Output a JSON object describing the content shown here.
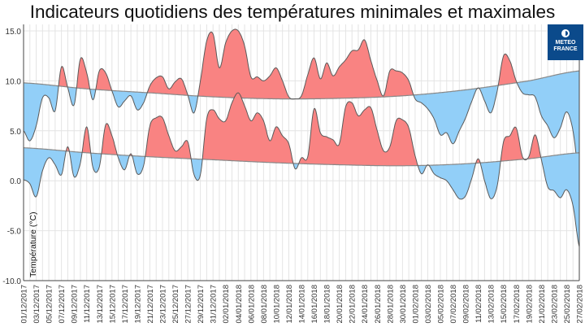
{
  "title": "Indicateurs quotidiens des températures minimales et maximales",
  "logo": {
    "text": "METEO FRANCE",
    "color": "#0b4a8b"
  },
  "chart_data": {
    "type": "area",
    "ylabel": "Température (°C)",
    "xlabel": "",
    "ylim": [
      -10,
      15
    ],
    "yticks": [
      "15.0",
      "10.0",
      "5.0",
      "0.0",
      "-5.0",
      "-10.0"
    ],
    "ytick_values": [
      15,
      10,
      5,
      0,
      -5,
      -10
    ],
    "grid": true,
    "colors": {
      "above_normal": "#f98382",
      "below_normal": "#92cff8",
      "line": "#5a5a5a"
    },
    "x_ticks": [
      "01/12/2017",
      "03/12/2017",
      "05/12/2017",
      "07/12/2017",
      "09/12/2017",
      "11/12/2017",
      "13/12/2017",
      "15/12/2017",
      "17/12/2017",
      "19/12/2017",
      "21/12/2017",
      "23/12/2017",
      "25/12/2017",
      "27/12/2017",
      "29/12/2017",
      "31/12/2017",
      "02/01/2018",
      "04/01/2018",
      "06/01/2018",
      "08/01/2018",
      "10/01/2018",
      "12/01/2018",
      "14/01/2018",
      "16/01/2018",
      "18/01/2018",
      "20/01/2018",
      "22/01/2018",
      "24/01/2018",
      "26/01/2018",
      "28/01/2018",
      "30/01/2018",
      "01/02/2018",
      "03/02/2018",
      "05/02/2018",
      "07/02/2018",
      "09/02/2018",
      "11/02/2018",
      "13/02/2018",
      "15/02/2018",
      "17/02/2018",
      "19/02/2018",
      "21/02/2018",
      "23/02/2018",
      "25/02/2018",
      "27/02/2018"
    ],
    "series": [
      {
        "name": "",
        "role": "tmax",
        "values": [
          5.0,
          4.0,
          5.5,
          8.3,
          8.3,
          7.0,
          11.4,
          9.3,
          7.6,
          12.2,
          10.8,
          8.1,
          11.0,
          10.8,
          9.0,
          7.4,
          8.0,
          8.5,
          7.1,
          7.8,
          9.5,
          10.3,
          10.4,
          9.2,
          9.9,
          10.2,
          8.6,
          6.8,
          10.0,
          14.0,
          14.7,
          11.3,
          13.8,
          15.0,
          15.0,
          13.5,
          10.4,
          10.4,
          10.0,
          10.5,
          11.3,
          10.0,
          8.4,
          8.2,
          8.5,
          10.6,
          12.3,
          10.2,
          11.8,
          10.5,
          11.4,
          12.1,
          13.0,
          13.1,
          14.1,
          12.0,
          10.0,
          8.5,
          11.0,
          11.0,
          10.8,
          10.0,
          8.2,
          7.8,
          7.2,
          6.2,
          4.6,
          4.8,
          3.7,
          5.0,
          6.3,
          8.0,
          9.3,
          8.0,
          6.8,
          9.0,
          12.5,
          12.0,
          10.0,
          8.8,
          8.6,
          8.4,
          6.5,
          5.5,
          4.3,
          5.3,
          6.9,
          5.0,
          0.4
        ]
      },
      {
        "name": "",
        "role": "tmin",
        "values": [
          0.1,
          -0.3,
          -1.6,
          1.0,
          2.3,
          1.6,
          0.6,
          3.4,
          0.4,
          1.8,
          5.4,
          1.3,
          1.4,
          5.6,
          4.5,
          2.3,
          1.1,
          2.7,
          0.7,
          1.5,
          5.5,
          6.3,
          6.3,
          4.5,
          3.0,
          3.4,
          3.9,
          0.6,
          0.6,
          6.2,
          7.1,
          6.2,
          6.0,
          7.8,
          8.8,
          7.5,
          6.0,
          6.8,
          6.0,
          4.0,
          5.4,
          4.5,
          3.7,
          1.2,
          2.3,
          2.4,
          7.2,
          4.8,
          4.4,
          4.1,
          3.7,
          7.4,
          7.8,
          6.5,
          7.1,
          7.3,
          5.0,
          3.0,
          3.4,
          6.0,
          6.1,
          5.3,
          2.5,
          0.7,
          1.6,
          0.7,
          0.3,
          0.0,
          -0.9,
          -1.8,
          -1.5,
          0.3,
          2.2,
          0.0,
          -1.8,
          -0.5,
          3.9,
          4.5,
          5.3,
          2.4,
          2.4,
          4.6,
          2.1,
          -0.6,
          -1.0,
          -1.7,
          -0.9,
          -2.5,
          -6.6
        ]
      },
      {
        "name": "",
        "role": "normal_max",
        "knots": [
          {
            "date": "01/12/2017",
            "value": 9.8
          },
          {
            "date": "11/12/2017",
            "value": 9.2
          },
          {
            "date": "21/12/2017",
            "value": 8.8
          },
          {
            "date": "31/12/2017",
            "value": 8.4
          },
          {
            "date": "10/01/2018",
            "value": 8.2
          },
          {
            "date": "20/01/2018",
            "value": 8.25
          },
          {
            "date": "30/01/2018",
            "value": 8.5
          },
          {
            "date": "09/02/2018",
            "value": 9.1
          },
          {
            "date": "19/02/2018",
            "value": 10.0
          },
          {
            "date": "27/02/2018",
            "value": 11.0
          }
        ]
      },
      {
        "name": "",
        "role": "normal_min",
        "knots": [
          {
            "date": "01/12/2017",
            "value": 3.3
          },
          {
            "date": "11/12/2017",
            "value": 2.8
          },
          {
            "date": "21/12/2017",
            "value": 2.4
          },
          {
            "date": "31/12/2017",
            "value": 2.1
          },
          {
            "date": "10/01/2018",
            "value": 1.8
          },
          {
            "date": "20/01/2018",
            "value": 1.6
          },
          {
            "date": "30/01/2018",
            "value": 1.5
          },
          {
            "date": "09/02/2018",
            "value": 1.7
          },
          {
            "date": "19/02/2018",
            "value": 2.2
          },
          {
            "date": "27/02/2018",
            "value": 2.8
          }
        ]
      }
    ]
  }
}
